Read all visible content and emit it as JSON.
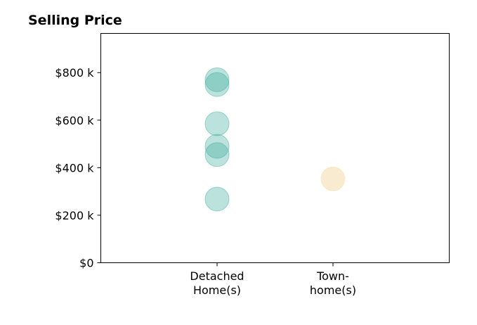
{
  "chart_data": {
    "type": "scatter",
    "title": "Selling Price",
    "xlabel": "",
    "ylabel": "",
    "categories": [
      [
        "Detached",
        "Home(s)"
      ],
      [
        "Town-",
        "home(s)"
      ]
    ],
    "series": [
      {
        "category_index": 0,
        "values": [
          770000,
          750000,
          585000,
          490000,
          455000,
          268000
        ],
        "color": "#3bab9c"
      },
      {
        "category_index": 1,
        "values": [
          353000
        ],
        "color": "#f3dba8"
      }
    ],
    "ylim": [
      0,
      965000
    ],
    "yticks": [
      {
        "value": 0,
        "label": "$0"
      },
      {
        "value": 200000,
        "label": "$200 k"
      },
      {
        "value": 400000,
        "label": "$400 k"
      },
      {
        "value": 600000,
        "label": "$600 k"
      },
      {
        "value": 800000,
        "label": "$800 k"
      }
    ],
    "grid": false,
    "legend": "none"
  }
}
